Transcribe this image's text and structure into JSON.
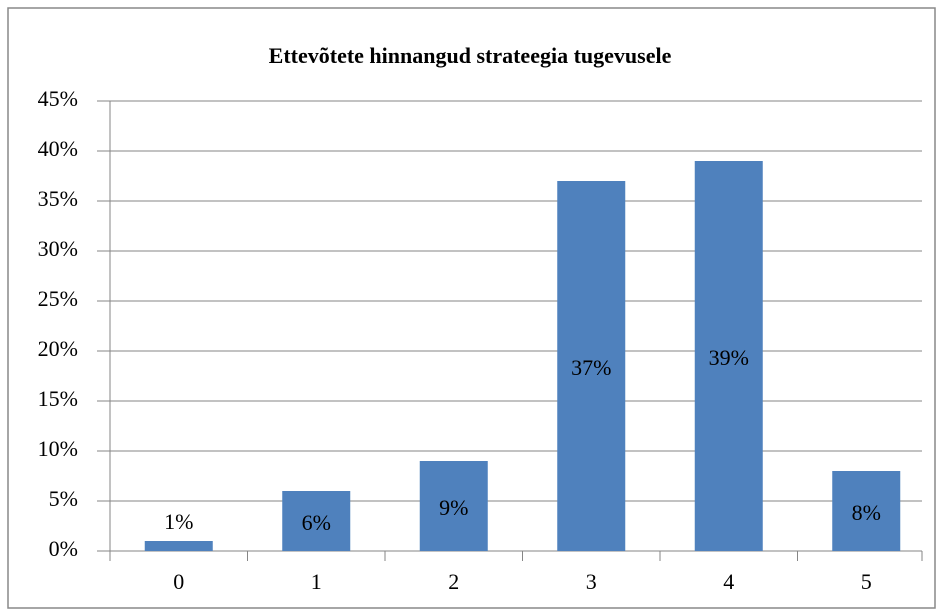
{
  "chart_data": {
    "type": "bar",
    "title": "Ettevõtete hinnangud strateegia tugevusele",
    "categories": [
      "0",
      "1",
      "2",
      "3",
      "4",
      "5"
    ],
    "values": [
      1,
      6,
      9,
      37,
      39,
      8
    ],
    "value_labels": [
      "1%",
      "6%",
      "9%",
      "37%",
      "39%",
      "8%"
    ],
    "color": "#4f81bd",
    "ylim": [
      0,
      45
    ],
    "yticks": [
      {
        "value": 0,
        "label": "0%"
      },
      {
        "value": 5,
        "label": "5%"
      },
      {
        "value": 10,
        "label": "10%"
      },
      {
        "value": 15,
        "label": "15%"
      },
      {
        "value": 20,
        "label": "20%"
      },
      {
        "value": 25,
        "label": "25%"
      },
      {
        "value": 30,
        "label": "30%"
      },
      {
        "value": 35,
        "label": "35%"
      },
      {
        "value": 40,
        "label": "40%"
      },
      {
        "value": 45,
        "label": "45%"
      }
    ],
    "grid": true
  }
}
